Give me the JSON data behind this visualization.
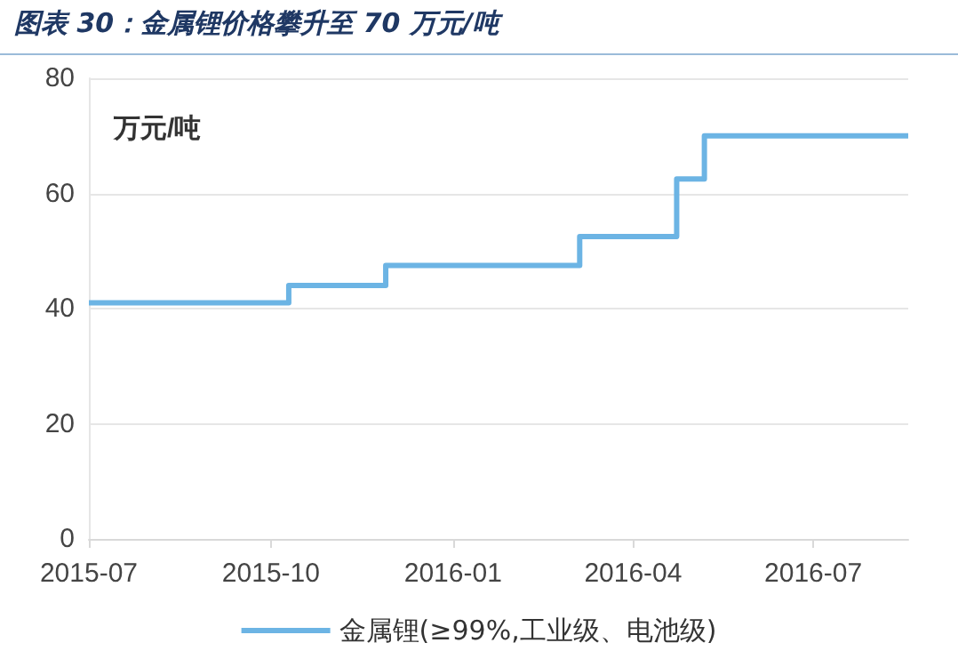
{
  "chart_data": {
    "type": "step",
    "title": "图表 30：金属锂价格攀升至 70 万元/吨",
    "ylabel": "万元/吨",
    "series": [
      {
        "name": "金属锂(≥99%,工业级、电池级)",
        "color": "#6cb4e4",
        "x": [
          "2015-07-01",
          "2015-10-10",
          "2015-11-28",
          "2016-03-05",
          "2016-04-23",
          "2016-05-07",
          "2016-08-18"
        ],
        "values": [
          41,
          44,
          47.5,
          52.5,
          62.5,
          70,
          70
        ]
      }
    ],
    "xlim": [
      "2015-07-01",
      "2016-08-18"
    ],
    "xticks": [
      "2015-07",
      "2015-10",
      "2016-01",
      "2016-04",
      "2016-07"
    ],
    "ylim": [
      0,
      80
    ],
    "yticks": [
      0,
      20,
      40,
      60,
      80
    ],
    "grid": "y",
    "legend": "bottom",
    "marker": "none",
    "line_style": "solid"
  }
}
